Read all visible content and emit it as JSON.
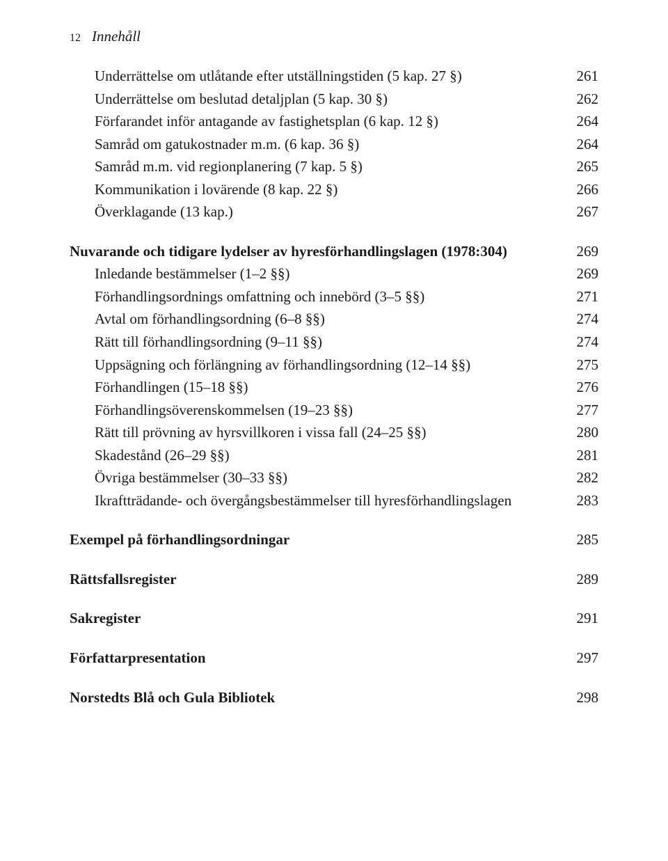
{
  "header": {
    "page_number": "12",
    "section_label": "Innehåll"
  },
  "block1": [
    {
      "text": "Underrättelse om utlåtande efter utställningstiden (5 kap. 27 §)",
      "page": "261",
      "indent": true
    },
    {
      "text": "Underrättelse om beslutad detaljplan (5 kap. 30 §)",
      "page": "262",
      "indent": true
    },
    {
      "text": "Förfarandet inför antagande av fastighetsplan (6 kap. 12 §)",
      "page": "264",
      "indent": true
    },
    {
      "text": "Samråd om gatukostnader m.m. (6 kap. 36 §)",
      "page": "264",
      "indent": true
    },
    {
      "text": "Samråd m.m. vid regionplanering (7 kap. 5 §)",
      "page": "265",
      "indent": true
    },
    {
      "text": "Kommunikation i lovärende (8 kap. 22 §)",
      "page": "266",
      "indent": true
    },
    {
      "text": "Överklagande (13 kap.)",
      "page": "267",
      "indent": true
    }
  ],
  "block2_heading": {
    "text": "Nuvarande och tidigare lydelser av hyresförhandlingslagen (1978:304)",
    "page": "269"
  },
  "block2": [
    {
      "text": "Inledande bestämmelser (1–2 §§)",
      "page": "269",
      "indent": true
    },
    {
      "text": "Förhandlingsordnings omfattning och innebörd (3–5 §§)",
      "page": "271",
      "indent": true
    },
    {
      "text": "Avtal om förhandlingsordning (6–8 §§)",
      "page": "274",
      "indent": true
    },
    {
      "text": "Rätt till förhandlingsordning (9–11 §§)",
      "page": "274",
      "indent": true
    },
    {
      "text": "Uppsägning och förlängning av förhandlingsordning (12–14 §§)",
      "page": "275",
      "indent": true
    },
    {
      "text": "Förhandlingen (15–18 §§)",
      "page": "276",
      "indent": true
    },
    {
      "text": "Förhandlingsöverenskommelsen (19–23 §§)",
      "page": "277",
      "indent": true
    },
    {
      "text": "Rätt till prövning av hyrsvillkoren i vissa fall (24–25 §§)",
      "page": "280",
      "indent": true
    },
    {
      "text": "Skadestånd (26–29 §§)",
      "page": "281",
      "indent": true
    },
    {
      "text": "Övriga bestämmelser (30–33 §§)",
      "page": "282",
      "indent": true
    },
    {
      "text": "Ikraftträdande- och övergångsbestämmelser till hyresförhandlings­lagen",
      "page": "283",
      "indent": true
    }
  ],
  "block3": [
    {
      "text": "Exempel på förhandlingsordningar",
      "page": "285",
      "bold": true
    },
    {
      "text": "Rättsfallsregister",
      "page": "289",
      "bold": true
    },
    {
      "text": "Sakregister",
      "page": "291",
      "bold": true
    },
    {
      "text": "Författarpresentation",
      "page": "297",
      "bold": true
    },
    {
      "text": "Norstedts Blå och Gula Bibliotek",
      "page": "298",
      "bold": true
    }
  ]
}
